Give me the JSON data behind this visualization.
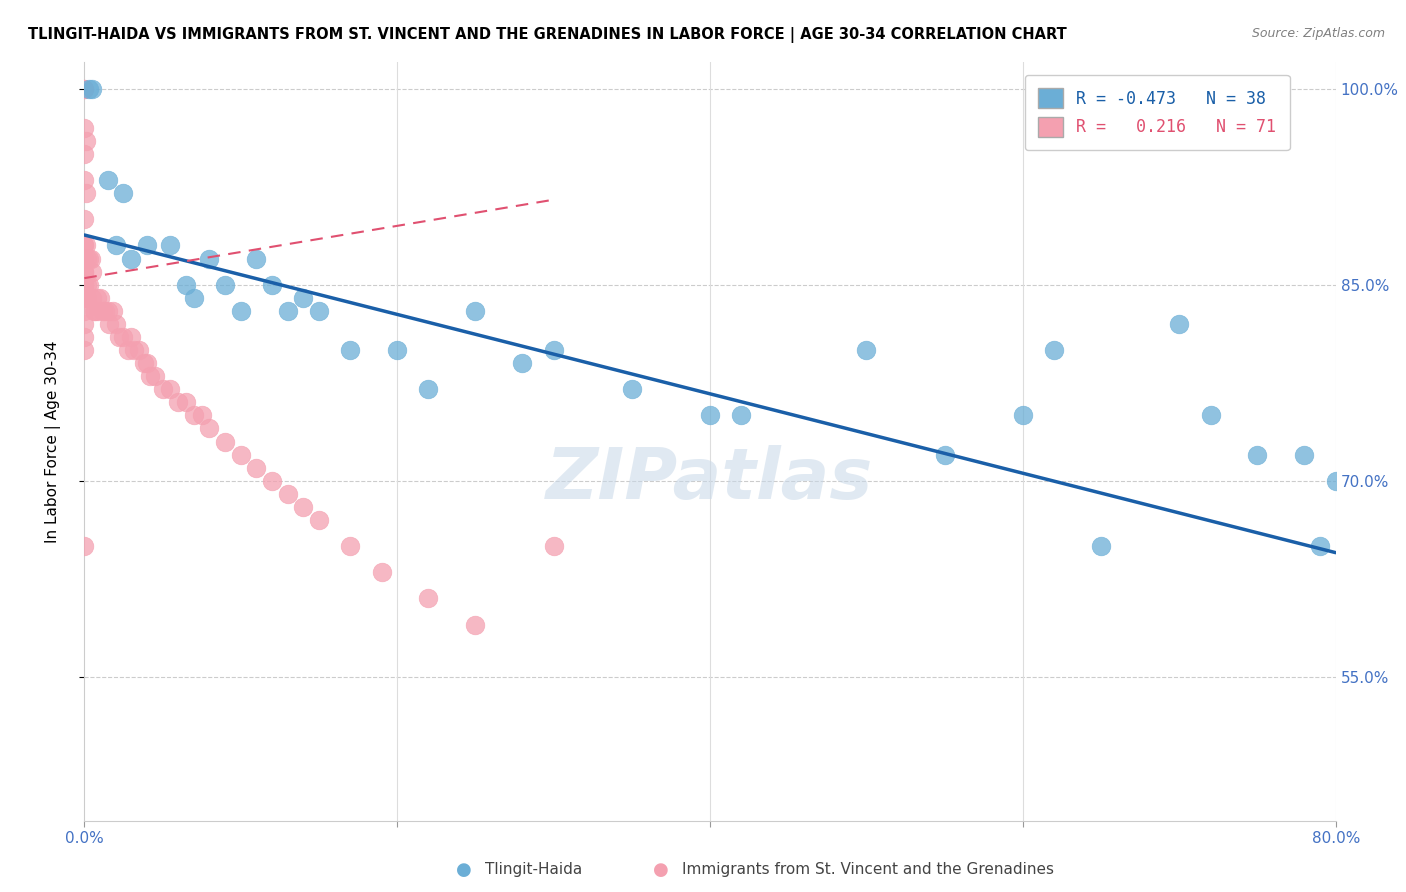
{
  "title": "TLINGIT-HAIDA VS IMMIGRANTS FROM ST. VINCENT AND THE GRENADINES IN LABOR FORCE | AGE 30-34 CORRELATION CHART",
  "source": "Source: ZipAtlas.com",
  "ylabel": "In Labor Force | Age 30-34",
  "legend_r1": "R = -0.473",
  "legend_n1": "N = 38",
  "legend_r2": "R =  0.216",
  "legend_n2": "N = 71",
  "blue_color": "#6baed6",
  "pink_color": "#f4a0b0",
  "trend_blue": "#1a5fa8",
  "trend_pink": "#e05070",
  "watermark": "ZIPatlas",
  "xlim": [
    0.0,
    0.8
  ],
  "ylim": [
    0.44,
    1.02
  ],
  "yticks": [
    0.55,
    0.7,
    0.85,
    1.0
  ],
  "ytick_labels": [
    "55.0%",
    "70.0%",
    "85.0%",
    "100.0%"
  ],
  "xticks": [
    0.0,
    0.2,
    0.4,
    0.6,
    0.8
  ],
  "blue_x": [
    0.003,
    0.005,
    0.015,
    0.02,
    0.025,
    0.03,
    0.04,
    0.055,
    0.065,
    0.07,
    0.08,
    0.09,
    0.1,
    0.11,
    0.12,
    0.13,
    0.14,
    0.15,
    0.17,
    0.2,
    0.22,
    0.25,
    0.28,
    0.3,
    0.35,
    0.4,
    0.42,
    0.5,
    0.55,
    0.6,
    0.62,
    0.65,
    0.7,
    0.72,
    0.75,
    0.78,
    0.79,
    0.8
  ],
  "blue_y": [
    1.0,
    1.0,
    0.93,
    0.88,
    0.92,
    0.87,
    0.88,
    0.88,
    0.85,
    0.84,
    0.87,
    0.85,
    0.83,
    0.87,
    0.85,
    0.83,
    0.84,
    0.83,
    0.8,
    0.8,
    0.77,
    0.83,
    0.79,
    0.8,
    0.77,
    0.75,
    0.75,
    0.8,
    0.72,
    0.75,
    0.8,
    0.65,
    0.82,
    0.75,
    0.72,
    0.72,
    0.65,
    0.7
  ],
  "pink_x": [
    0.0,
    0.0,
    0.0,
    0.0,
    0.0,
    0.0,
    0.0,
    0.0,
    0.0,
    0.0,
    0.0,
    0.0,
    0.0,
    0.0,
    0.0,
    0.001,
    0.001,
    0.001,
    0.002,
    0.002,
    0.002,
    0.003,
    0.003,
    0.004,
    0.005,
    0.005,
    0.006,
    0.007,
    0.008,
    0.009,
    0.01,
    0.012,
    0.013,
    0.015,
    0.016,
    0.018,
    0.02,
    0.022,
    0.025,
    0.028,
    0.03,
    0.032,
    0.035,
    0.038,
    0.04,
    0.042,
    0.045,
    0.05,
    0.055,
    0.06,
    0.065,
    0.07,
    0.075,
    0.08,
    0.09,
    0.1,
    0.11,
    0.12,
    0.13,
    0.14,
    0.15,
    0.17,
    0.19,
    0.22,
    0.25,
    0.3,
    0.0,
    0.0,
    0.0,
    0.0,
    0.0
  ],
  "pink_y": [
    1.0,
    1.0,
    0.97,
    0.95,
    0.93,
    0.9,
    0.88,
    0.88,
    0.87,
    0.86,
    0.86,
    0.85,
    0.85,
    0.84,
    0.84,
    0.96,
    0.92,
    0.88,
    0.87,
    0.85,
    0.84,
    0.87,
    0.85,
    0.87,
    0.86,
    0.84,
    0.83,
    0.83,
    0.84,
    0.83,
    0.84,
    0.83,
    0.83,
    0.83,
    0.82,
    0.83,
    0.82,
    0.81,
    0.81,
    0.8,
    0.81,
    0.8,
    0.8,
    0.79,
    0.79,
    0.78,
    0.78,
    0.77,
    0.77,
    0.76,
    0.76,
    0.75,
    0.75,
    0.74,
    0.73,
    0.72,
    0.71,
    0.7,
    0.69,
    0.68,
    0.67,
    0.65,
    0.63,
    0.61,
    0.59,
    0.65,
    0.83,
    0.82,
    0.81,
    0.8,
    0.65
  ],
  "blue_trend_x": [
    0.0,
    0.8
  ],
  "blue_trend_y": [
    0.888,
    0.645
  ],
  "pink_trend_x": [
    0.0,
    0.3
  ],
  "pink_trend_y": [
    0.855,
    0.915
  ]
}
